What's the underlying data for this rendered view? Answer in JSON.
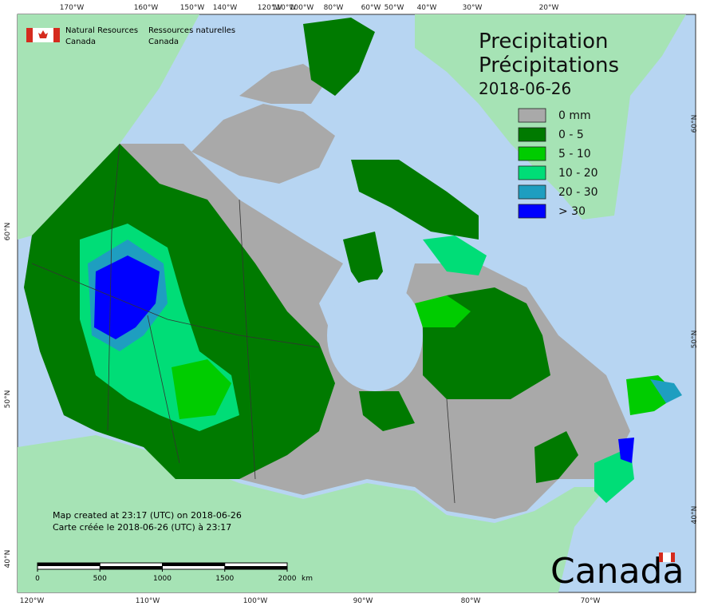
{
  "agency": {
    "en": [
      "Natural Resources",
      "Canada"
    ],
    "fr": [
      "Ressources naturelles",
      "Canada"
    ]
  },
  "title": {
    "en": "Precipitation",
    "fr": "Précipitations",
    "date": "2018-06-26"
  },
  "legend": [
    {
      "label": "0 mm",
      "color": "#a9a9a9"
    },
    {
      "label": "0 - 5",
      "color": "#007a00"
    },
    {
      "label": "5 - 10",
      "color": "#00cc00"
    },
    {
      "label": "10 - 20",
      "color": "#00dd77"
    },
    {
      "label": "20 - 30",
      "color": "#1e9ec0"
    },
    {
      "label": "> 30",
      "color": "#0000ff"
    }
  ],
  "graticule": {
    "top": [
      "170°W",
      "160°W",
      "150°W",
      "140°W",
      "120°W",
      "110°W",
      "100°W",
      "80°W",
      "60°W",
      "50°W",
      "40°W",
      "30°W",
      "20°W"
    ],
    "bottom": [
      "120°W",
      "110°W",
      "100°W",
      "90°W",
      "80°W",
      "70°W"
    ],
    "left": [
      "60°N",
      "50°N",
      "40°N"
    ],
    "right": [
      "60°N",
      "50°N",
      "40°N"
    ]
  },
  "footnote": [
    "Map created at 23:17 (UTC) on 2018-06-26",
    "Carte créée le 2018-06-26 (UTC) à 23:17"
  ],
  "scale_bar": {
    "ticks": [
      0,
      500,
      1000,
      1500,
      2000
    ],
    "unit": "km"
  },
  "wordmark": "Canada"
}
